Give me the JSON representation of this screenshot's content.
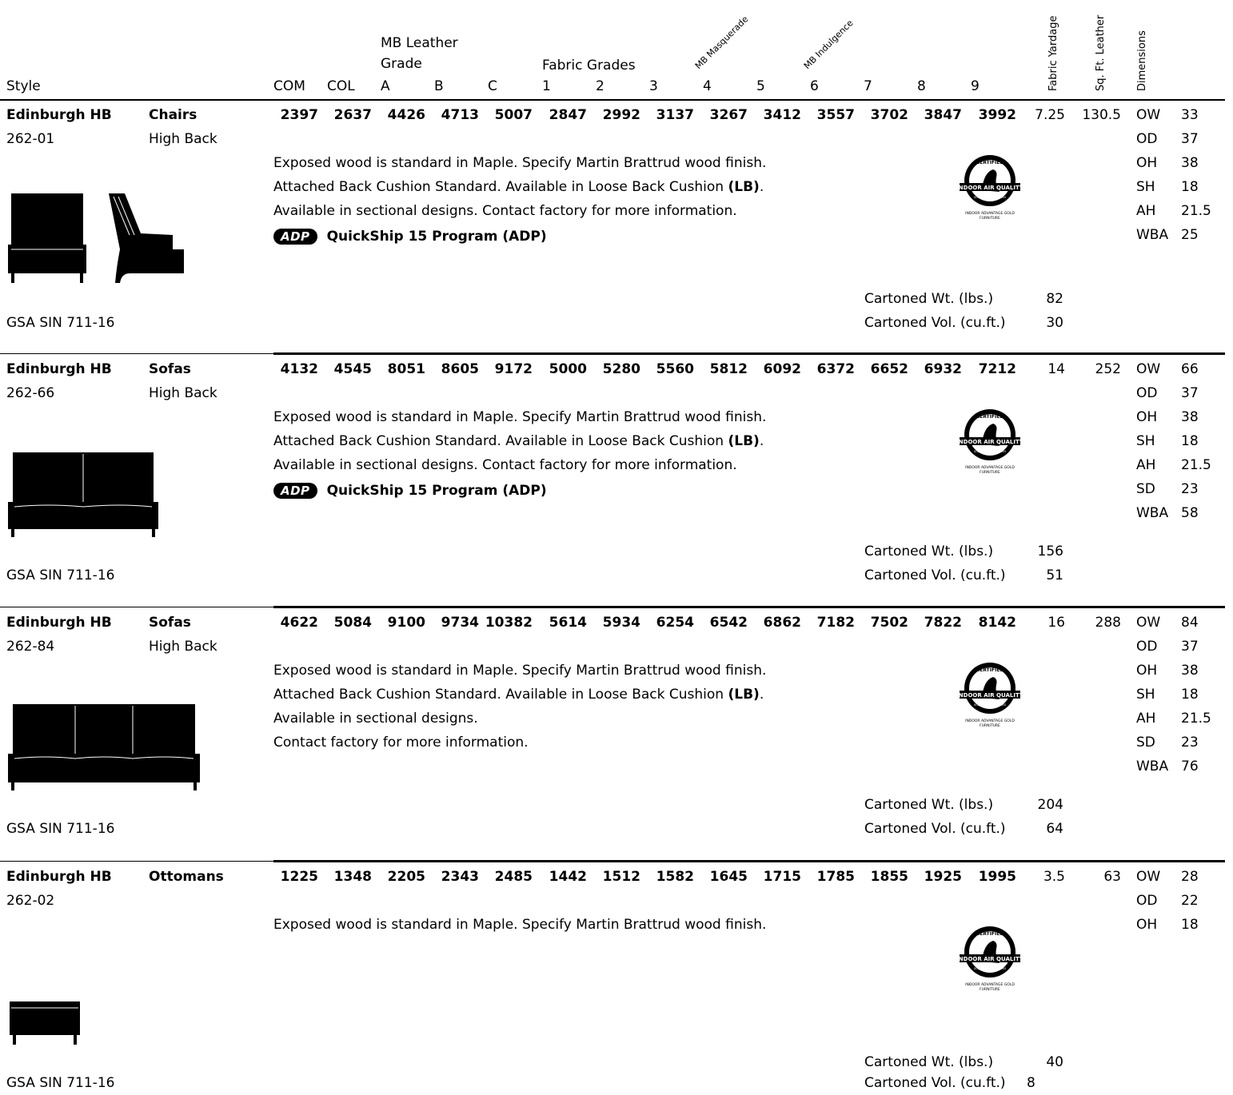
{
  "header": {
    "style": "Style",
    "com": "COM",
    "col": "COL",
    "leather_grade_line1": "MB Leather",
    "leather_grade_line2": "Grade",
    "fabric_grades": "Fabric Grades",
    "grades": [
      "A",
      "B",
      "C",
      "1",
      "2",
      "3",
      "4",
      "5",
      "6",
      "7",
      "8",
      "9"
    ],
    "masquerade": "MB Masquerade",
    "indulgence": "MB Indulgence",
    "fabric_yardage": "Fabric Yardage",
    "sq_ft_leather": "Sq. Ft. Leather",
    "dimensions": "Dimensions"
  },
  "products": [
    {
      "name": "Edinburgh HB",
      "code": "262-01",
      "category": "Chairs",
      "subtype": "High Back",
      "prices": [
        "2397",
        "2637",
        "4426",
        "4713",
        "5007",
        "2847",
        "2992",
        "3137",
        "3267",
        "3412",
        "3557",
        "3702",
        "3847",
        "3992"
      ],
      "yardage": "7.25",
      "sqft": "130.5",
      "notes": [
        "Exposed wood is standard in Maple. Specify Martin Brattrud wood finish.",
        "Attached Back Cushion Standard. Available in Loose Back Cushion ",
        "Available in sectional designs. Contact factory for more information."
      ],
      "lb": "(LB)",
      "lb_dot": ".",
      "adp_badge": "ADP",
      "adp_text": "QuickShip 15 Program (ADP)",
      "dims": [
        [
          "OW",
          "33"
        ],
        [
          "OD",
          "37"
        ],
        [
          "OH",
          "38"
        ],
        [
          "SH",
          "18"
        ],
        [
          "AH",
          "21.5"
        ],
        [
          "WBA",
          "25"
        ]
      ],
      "wt_label": "Cartoned Wt. (lbs.)",
      "wt": "82",
      "vol_label": "Cartoned Vol. (cu.ft.)",
      "vol": "30",
      "gsa": "GSA SIN 711-16"
    },
    {
      "name": "Edinburgh HB",
      "code": "262-66",
      "category": "Sofas",
      "subtype": "High Back",
      "prices": [
        "4132",
        "4545",
        "8051",
        "8605",
        "9172",
        "5000",
        "5280",
        "5560",
        "5812",
        "6092",
        "6372",
        "6652",
        "6932",
        "7212"
      ],
      "yardage": "14",
      "sqft": "252",
      "notes": [
        "Exposed wood is standard in Maple. Specify Martin Brattrud wood finish.",
        "Attached Back Cushion Standard. Available in Loose Back Cushion ",
        "Available in sectional designs. Contact factory for more information."
      ],
      "lb": "(LB)",
      "lb_dot": ".",
      "adp_badge": "ADP",
      "adp_text": "QuickShip 15 Program (ADP)",
      "dims": [
        [
          "OW",
          "66"
        ],
        [
          "OD",
          "37"
        ],
        [
          "OH",
          "38"
        ],
        [
          "SH",
          "18"
        ],
        [
          "AH",
          "21.5"
        ],
        [
          "SD",
          "23"
        ],
        [
          "WBA",
          "58"
        ]
      ],
      "wt_label": "Cartoned Wt. (lbs.)",
      "wt": "156",
      "vol_label": "Cartoned Vol. (cu.ft.)",
      "vol": "51",
      "gsa": "GSA SIN 711-16"
    },
    {
      "name": "Edinburgh HB",
      "code": "262-84",
      "category": "Sofas",
      "subtype": "High Back",
      "prices": [
        "4622",
        "5084",
        "9100",
        "9734",
        "10382",
        "5614",
        "5934",
        "6254",
        "6542",
        "6862",
        "7182",
        "7502",
        "7822",
        "8142"
      ],
      "yardage": "16",
      "sqft": "288",
      "notes": [
        "Exposed wood is standard in Maple. Specify Martin Brattrud wood finish.",
        "Attached Back Cushion Standard. Available in Loose Back Cushion ",
        "Available in sectional designs.",
        "Contact factory for more information."
      ],
      "lb": "(LB)",
      "lb_dot": ".",
      "dims": [
        [
          "OW",
          "84"
        ],
        [
          "OD",
          "37"
        ],
        [
          "OH",
          "38"
        ],
        [
          "SH",
          "18"
        ],
        [
          "AH",
          "21.5"
        ],
        [
          "SD",
          "23"
        ],
        [
          "WBA",
          "76"
        ]
      ],
      "wt_label": "Cartoned Wt. (lbs.)",
      "wt": "204",
      "vol_label": "Cartoned Vol. (cu.ft.)",
      "vol": "64",
      "gsa": "GSA SIN 711-16"
    },
    {
      "name": "Edinburgh HB",
      "code": "262-02",
      "category": "Ottomans",
      "subtype": "",
      "prices": [
        "1225",
        "1348",
        "2205",
        "2343",
        "2485",
        "1442",
        "1512",
        "1582",
        "1645",
        "1715",
        "1785",
        "1855",
        "1925",
        "1995"
      ],
      "yardage": "3.5",
      "sqft": "63",
      "notes": [
        "Exposed wood is standard in Maple. Specify Martin Brattrud wood finish."
      ],
      "dims": [
        [
          "OW",
          "28"
        ],
        [
          "OD",
          "22"
        ],
        [
          "OH",
          "18"
        ]
      ],
      "wt_label": "Cartoned Wt. (lbs.)",
      "wt": "40",
      "vol_label": "Cartoned Vol. (cu.ft.)",
      "vol": "8",
      "gsa": "GSA SIN 711-16"
    }
  ],
  "cert_badge": {
    "top": "CERTIFIED",
    "band": "INDOOR AIR QUALITY",
    "sub": "SCS GLOBAL SERVICES",
    "caption1": "INDOOR ADVANTAGE GOLD",
    "caption2": "FURNITURE"
  }
}
